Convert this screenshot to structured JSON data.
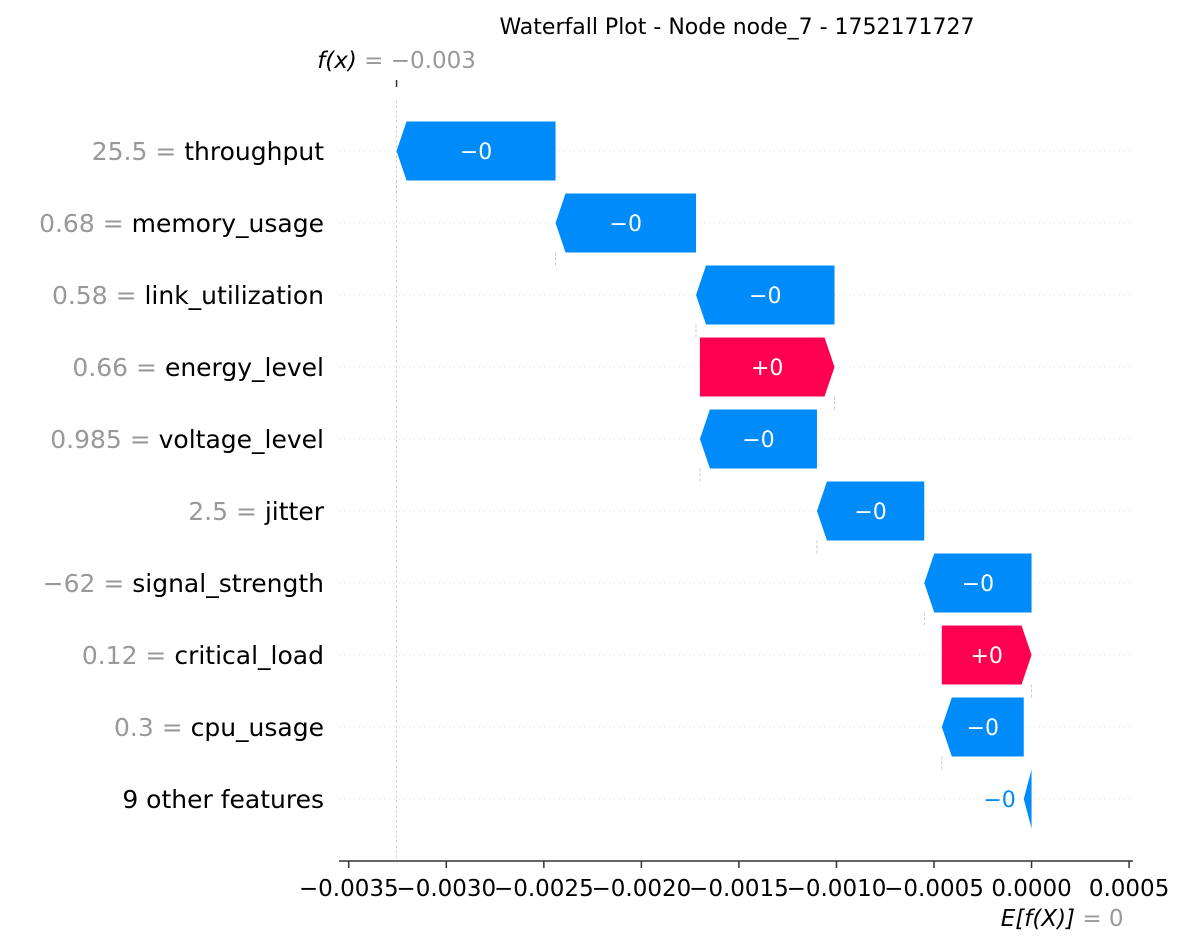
{
  "chart_data": {
    "type": "bar",
    "title": "Waterfall Plot - Node node_7 - 1752171727",
    "fx_label": "f(x)",
    "fx_value_text": "= −0.003",
    "fx_value": -0.003255,
    "base_label": "E[f(X)]",
    "base_value_text": "= 0",
    "base_value": 0,
    "xlim": [
      -0.00355,
      0.00052
    ],
    "x_ticks": [
      -0.0035,
      -0.003,
      -0.0025,
      -0.002,
      -0.0015,
      -0.001,
      -0.0005,
      0.0,
      0.0005
    ],
    "x_tick_labels": [
      "−0.0035",
      "−0.0030",
      "−0.0025",
      "−0.0020",
      "−0.0015",
      "−0.0010",
      "−0.0005",
      "0.0000",
      "0.0005"
    ],
    "grid": "dotted horizontal per row",
    "features": [
      {
        "value_text": "25.5",
        "name": "throughput",
        "start": -0.00244,
        "end": -0.003255,
        "label": "−0"
      },
      {
        "value_text": "0.68",
        "name": "memory_usage",
        "start": -0.00172,
        "end": -0.00244,
        "label": "−0"
      },
      {
        "value_text": "0.58",
        "name": "link_utilization",
        "start": -0.00101,
        "end": -0.00172,
        "label": "−0"
      },
      {
        "value_text": "0.66",
        "name": "energy_level",
        "start": -0.0017,
        "end": -0.00101,
        "label": "+0"
      },
      {
        "value_text": "0.985",
        "name": "voltage_level",
        "start": -0.0011,
        "end": -0.0017,
        "label": "−0"
      },
      {
        "value_text": "2.5",
        "name": "jitter",
        "start": -0.00055,
        "end": -0.0011,
        "label": "−0"
      },
      {
        "value_text": "−62",
        "name": "signal_strength",
        "start": 0.0,
        "end": -0.00055,
        "label": "−0"
      },
      {
        "value_text": "0.12",
        "name": "critical_load",
        "start": -0.00046,
        "end": 0.0,
        "label": "+0"
      },
      {
        "value_text": "0.3",
        "name": "cpu_usage",
        "start": -4e-05,
        "end": -0.00046,
        "label": "−0"
      },
      {
        "value_text": "",
        "name": "9 other features",
        "start": 0.0,
        "end": -4e-05,
        "label": "−0"
      }
    ],
    "colors": {
      "negative": "#008bfb",
      "positive": "#ff0051",
      "feature_value_text": "#999999",
      "feature_name_text": "#000000",
      "grid": "#cccccc",
      "axis": "#333333"
    }
  }
}
